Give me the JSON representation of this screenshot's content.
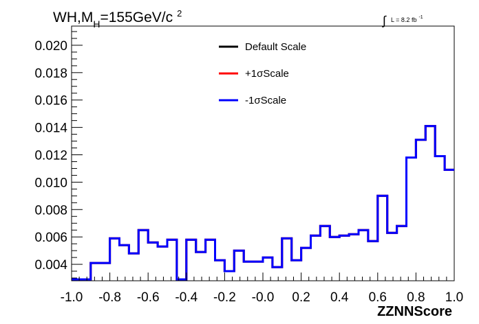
{
  "chart_data": {
    "type": "histogram",
    "title_main": "WH,M",
    "title_sub": "H",
    "title_rest": "=155GeV/c",
    "title_sup": "2",
    "lumi_integral": "∫",
    "lumi_text": "L = 8.2 fb",
    "lumi_sup": "-1",
    "xlabel": "ZZNNScore",
    "ylabel": "",
    "xlim": [
      -1.0,
      1.0
    ],
    "ylim": [
      0.0028,
      0.0214
    ],
    "x_ticks": [
      "-1.0",
      "-0.8",
      "-0.6",
      "-0.4",
      "-0.2",
      "-0.0",
      "0.2",
      "0.4",
      "0.6",
      "0.8",
      "1.0"
    ],
    "x_tick_values": [
      -1.0,
      -0.8,
      -0.6,
      -0.4,
      -0.2,
      0.0,
      0.2,
      0.4,
      0.6,
      0.8,
      1.0
    ],
    "y_ticks": [
      "0.004",
      "0.006",
      "0.008",
      "0.010",
      "0.012",
      "0.014",
      "0.016",
      "0.018",
      "0.020"
    ],
    "y_tick_values": [
      0.004,
      0.006,
      0.008,
      0.01,
      0.012,
      0.014,
      0.016,
      0.018,
      0.02
    ],
    "bin_edges": [
      -1.0,
      -0.95,
      -0.9,
      -0.85,
      -0.8,
      -0.75,
      -0.7,
      -0.65,
      -0.6,
      -0.55,
      -0.5,
      -0.45,
      -0.4,
      -0.35,
      -0.3,
      -0.25,
      -0.2,
      -0.15,
      -0.1,
      -0.05,
      0.0,
      0.05,
      0.1,
      0.15,
      0.2,
      0.25,
      0.3,
      0.35,
      0.4,
      0.45,
      0.5,
      0.55,
      0.6,
      0.65,
      0.7,
      0.75,
      0.8,
      0.85,
      0.9,
      0.95,
      1.0
    ],
    "series": [
      {
        "name": "Default Scale",
        "color": "#000000",
        "values": [
          0.0029,
          0.0029,
          0.0041,
          0.0041,
          0.0059,
          0.0054,
          0.0048,
          0.0065,
          0.0056,
          0.0053,
          0.0058,
          0.0029,
          0.0058,
          0.0049,
          0.0058,
          0.0043,
          0.0035,
          0.005,
          0.0042,
          0.0042,
          0.0045,
          0.0038,
          0.0059,
          0.0043,
          0.0052,
          0.0061,
          0.0068,
          0.006,
          0.0061,
          0.0062,
          0.0065,
          0.0057,
          0.009,
          0.0063,
          0.0068,
          0.0118,
          0.0131,
          0.0141,
          0.0119,
          0.0109
        ]
      },
      {
        "name": "+1σScale",
        "color": "#ff0000",
        "values": [
          0.0029,
          0.0029,
          0.0041,
          0.0041,
          0.0059,
          0.0054,
          0.0048,
          0.0065,
          0.0056,
          0.0053,
          0.0058,
          0.0029,
          0.0058,
          0.0049,
          0.0058,
          0.0043,
          0.0035,
          0.005,
          0.0042,
          0.0042,
          0.0045,
          0.0038,
          0.0059,
          0.0043,
          0.0052,
          0.0061,
          0.0068,
          0.006,
          0.0061,
          0.0062,
          0.0065,
          0.0057,
          0.009,
          0.0063,
          0.0068,
          0.0118,
          0.0131,
          0.0141,
          0.0119,
          0.0109
        ]
      },
      {
        "name": "-1σScale",
        "color": "#0000ff",
        "values": [
          0.0029,
          0.0029,
          0.0041,
          0.0041,
          0.0059,
          0.0054,
          0.0048,
          0.0065,
          0.0056,
          0.0053,
          0.0058,
          0.0029,
          0.0058,
          0.0049,
          0.0058,
          0.0043,
          0.0035,
          0.005,
          0.0042,
          0.0042,
          0.0045,
          0.0038,
          0.0059,
          0.0043,
          0.0052,
          0.0061,
          0.0068,
          0.006,
          0.0061,
          0.0062,
          0.0065,
          0.0057,
          0.009,
          0.0063,
          0.0068,
          0.0118,
          0.0131,
          0.0141,
          0.0119,
          0.0109
        ]
      }
    ],
    "legend_position": "top-center",
    "grid": false
  }
}
